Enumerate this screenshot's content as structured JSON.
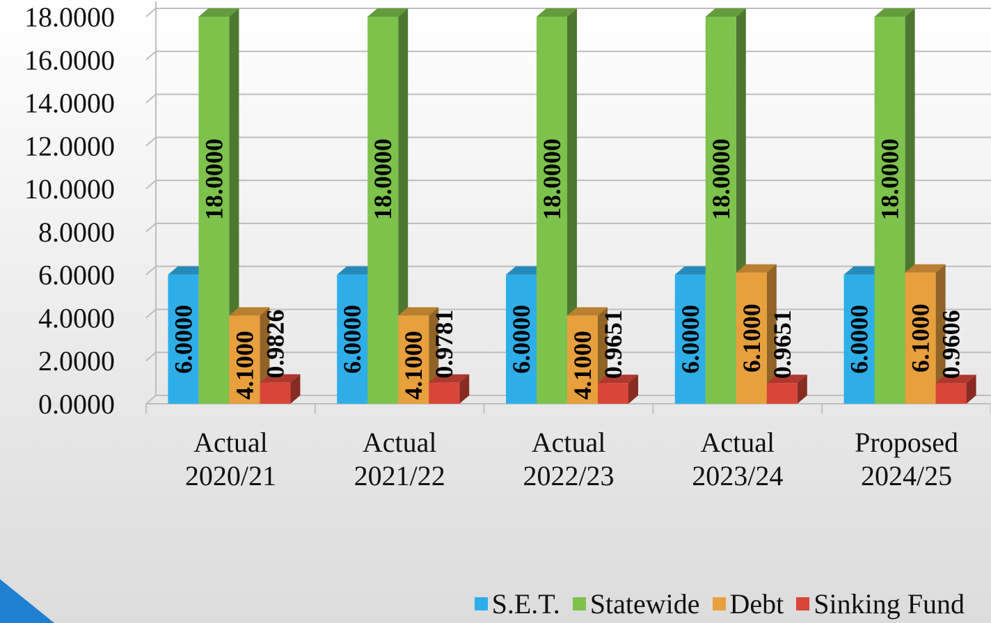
{
  "chart_data": {
    "type": "bar3d",
    "categories": [
      "Actual 2020/21",
      "Actual 2021/22",
      "Actual 2022/23",
      "Actual 2023/24",
      "Proposed 2024/25"
    ],
    "series": [
      {
        "name": "S.E.T.",
        "color": "#2eaee9",
        "values": [
          6,
          6,
          6,
          6,
          6
        ],
        "value_labels": [
          "6.0000",
          "6.0000",
          "6.0000",
          "6.0000",
          "6.0000"
        ]
      },
      {
        "name": "Statewide",
        "color": "#7dc24b",
        "values": [
          18,
          18,
          18,
          18,
          18
        ],
        "value_labels": [
          "18.0000",
          "18.0000",
          "18.0000",
          "18.0000",
          "18.0000"
        ]
      },
      {
        "name": "Debt",
        "color": "#e8a03d",
        "values": [
          4.1,
          4.1,
          4.1,
          6.1,
          6.1
        ],
        "value_labels": [
          "4.1000",
          "4.1000",
          "4.1000",
          "6.1000",
          "6.1000"
        ]
      },
      {
        "name": "Sinking Fund",
        "color": "#d94638",
        "values": [
          0.9826,
          0.9781,
          0.9651,
          0.9651,
          0.9606
        ],
        "value_labels": [
          "0.9826",
          "0.9781",
          "0.9651",
          "0.9651",
          "0.9606"
        ]
      }
    ],
    "ylim": [
      0,
      18
    ],
    "yticks": [
      {
        "value": 0,
        "label": "0.0000"
      },
      {
        "value": 2,
        "label": "2.0000"
      },
      {
        "value": 4,
        "label": "4.0000"
      },
      {
        "value": 6,
        "label": "6.0000"
      },
      {
        "value": 8,
        "label": "8.0000"
      },
      {
        "value": 10,
        "label": "10.0000"
      },
      {
        "value": 12,
        "label": "12.0000"
      },
      {
        "value": 14,
        "label": "14.0000"
      },
      {
        "value": 16,
        "label": "16.0000"
      },
      {
        "value": 18,
        "label": "18.0000"
      }
    ],
    "grid": true,
    "legend": "bottom-right"
  }
}
